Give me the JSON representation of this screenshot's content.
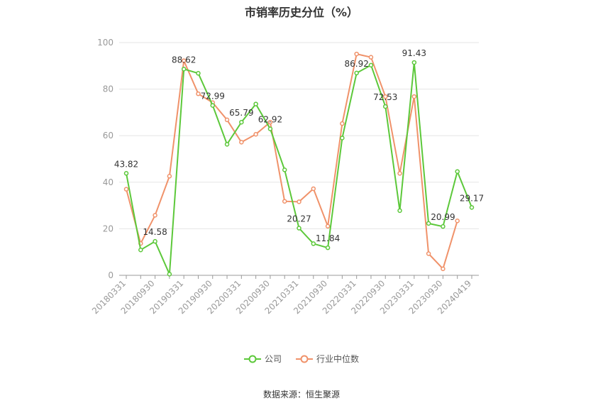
{
  "chart_data": {
    "type": "line",
    "title": "市销率历史分位（%）",
    "source": "数据来源：恒生聚源",
    "ylim": [
      0,
      100
    ],
    "yticks": [
      0,
      20,
      40,
      60,
      80,
      100
    ],
    "grid": "horizontal",
    "legend_position": "bottom",
    "x_tick_labels": [
      "20180331",
      "20180930",
      "20190331",
      "20190930",
      "20200331",
      "20200930",
      "20210331",
      "20210930",
      "20220331",
      "20220930",
      "20230331",
      "20230930",
      "20240419"
    ],
    "x": [
      "20180331",
      "20180630",
      "20180930",
      "20181231",
      "20190331",
      "20190630",
      "20190930",
      "20191231",
      "20200331",
      "20200630",
      "20200930",
      "20201231",
      "20210331",
      "20210630",
      "20210930",
      "20211231",
      "20220331",
      "20220630",
      "20220930",
      "20221231",
      "20230331",
      "20230630",
      "20230930",
      "20231231",
      "20240419"
    ],
    "series": [
      {
        "name": "公司",
        "color": "#5cc83a",
        "values": [
          43.82,
          10.9,
          14.58,
          0.5,
          88.62,
          86.8,
          72.99,
          56.3,
          65.79,
          73.6,
          62.92,
          45.3,
          20.27,
          13.6,
          11.84,
          59.0,
          86.92,
          90.3,
          72.53,
          27.8,
          91.43,
          22.3,
          20.99,
          44.6,
          29.17
        ],
        "labels": {
          "0": "43.82",
          "2": "14.58",
          "4": "88.62",
          "6": "72.99",
          "8": "65.79",
          "10": "62.92",
          "12": "20.27",
          "14": "11.84",
          "16": "86.92",
          "18": "72.53",
          "20": "91.43",
          "22": "20.99",
          "24": "29.17"
        }
      },
      {
        "name": "行业中位数",
        "color": "#f0926a",
        "values": [
          37.0,
          13.7,
          25.8,
          42.6,
          92.2,
          78.0,
          74.2,
          66.8,
          57.2,
          60.6,
          65.8,
          31.8,
          31.6,
          37.2,
          21.1,
          65.2,
          95.1,
          93.7,
          76.8,
          43.8,
          76.8,
          9.3,
          2.8,
          23.4,
          null
        ]
      }
    ]
  }
}
